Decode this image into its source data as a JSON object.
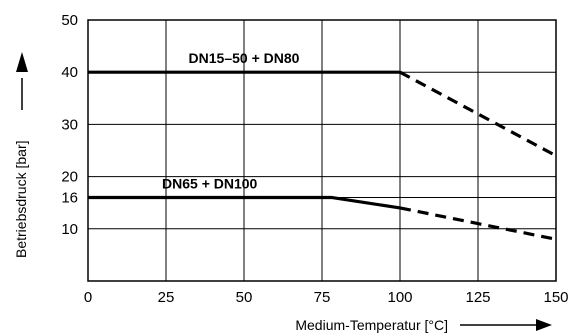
{
  "chart_data": {
    "type": "line",
    "title": "",
    "xlabel": "Medium-Temperatur [°C]",
    "ylabel": "Betriebsdruck [bar]",
    "xlim": [
      0,
      150
    ],
    "ylim": [
      0,
      50
    ],
    "x_ticks": [
      0,
      25,
      50,
      75,
      100,
      125,
      150
    ],
    "y_ticks": [
      10,
      16,
      20,
      30,
      40,
      50
    ],
    "grid": true,
    "legend": "none",
    "series": [
      {
        "name": "DN15–50 + DN80",
        "color": "#000000",
        "solid": [
          [
            0,
            40
          ],
          [
            100,
            40
          ]
        ],
        "dashed": [
          [
            100,
            40
          ],
          [
            150,
            24
          ]
        ]
      },
      {
        "name": "DN65 + DN100",
        "color": "#000000",
        "solid": [
          [
            0,
            16
          ],
          [
            78,
            16
          ],
          [
            100,
            14
          ]
        ],
        "dashed": [
          [
            100,
            14
          ],
          [
            150,
            8
          ]
        ]
      }
    ]
  }
}
